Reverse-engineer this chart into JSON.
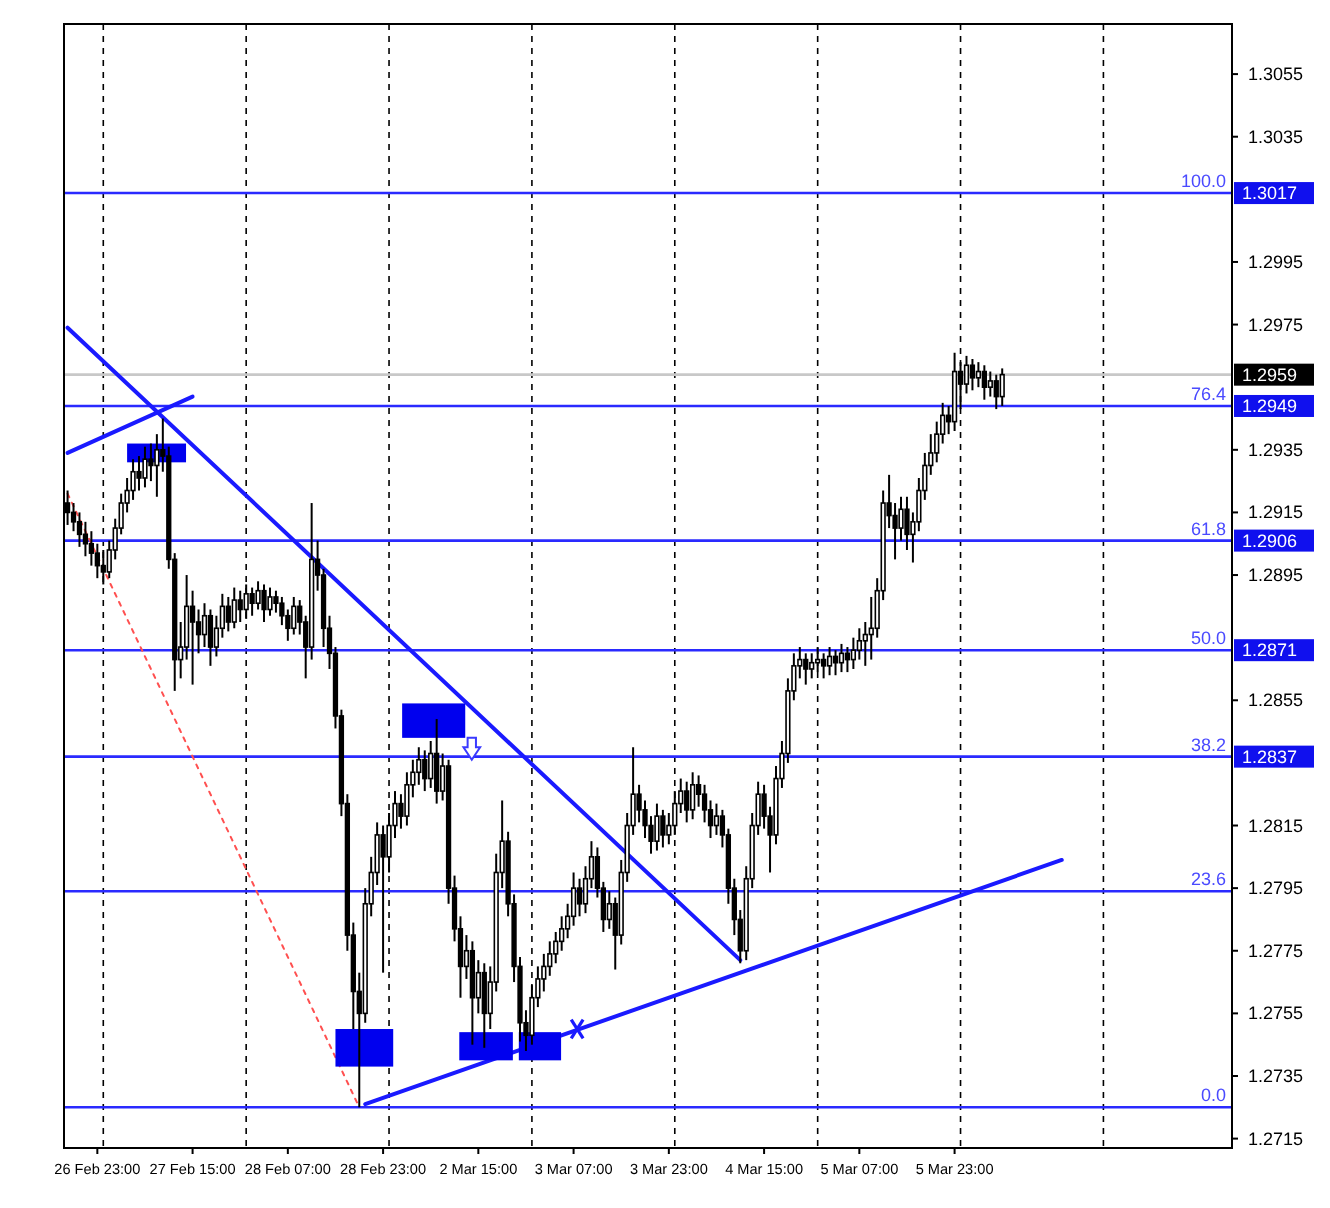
{
  "chart_data": {
    "type": "candlestick",
    "categories": [
      null,
      null,
      null,
      null,
      null,
      "26 Feb 23:00",
      null,
      null,
      null,
      null,
      null,
      null,
      null,
      null,
      null,
      null,
      null,
      null,
      null,
      null,
      null,
      "27 Feb 15:00",
      null,
      null,
      null,
      null,
      null,
      null,
      null,
      null,
      null,
      null,
      null,
      null,
      null,
      null,
      null,
      "28 Feb 07:00",
      null,
      null,
      null,
      null,
      null,
      null,
      null,
      null,
      null,
      null,
      null,
      null,
      null,
      null,
      null,
      "28 Feb 23:00",
      null,
      null,
      null,
      null,
      null,
      null,
      null,
      null,
      null,
      null,
      null,
      null,
      null,
      null,
      null,
      "2 Mar 15:00",
      null,
      null,
      null,
      null,
      null,
      null,
      null,
      null,
      null,
      null,
      null,
      null,
      null,
      null,
      null,
      "3 Mar 07:00",
      null,
      null,
      null,
      null,
      null,
      null,
      null,
      null,
      null,
      null,
      null,
      null,
      null,
      null,
      null,
      "3 Mar 23:00",
      null,
      null,
      null,
      null,
      null,
      null,
      null,
      null,
      null,
      null,
      null,
      null,
      null,
      null,
      null,
      "4 Mar 15:00",
      null,
      null,
      null,
      null,
      null,
      null,
      null,
      null,
      null,
      null,
      null,
      null,
      null,
      null,
      null,
      "5 Mar 07:00",
      null,
      null,
      null,
      null,
      null,
      null,
      null,
      null,
      null,
      null,
      null,
      null,
      null,
      null,
      null,
      "5 Mar 23:00",
      null,
      null,
      null,
      null,
      null,
      null,
      null,
      null,
      null,
      null,
      null,
      null,
      null,
      null,
      null,
      null,
      null,
      null,
      null,
      null,
      null,
      null,
      null,
      null,
      null,
      null,
      null,
      null,
      null,
      null,
      null,
      null,
      null,
      null,
      null,
      null,
      null,
      null,
      null,
      null,
      null,
      null,
      null,
      null,
      null,
      null
    ],
    "ohlc": [
      [
        1.2918,
        1.2922,
        1.2911,
        1.2915
      ],
      [
        1.2915,
        1.2918,
        1.2909,
        1.2912
      ],
      [
        1.2912,
        1.2915,
        1.2904,
        1.2908
      ],
      [
        1.2908,
        1.2912,
        1.2901,
        1.2905
      ],
      [
        1.2905,
        1.2909,
        1.2898,
        1.2902
      ],
      [
        1.2902,
        1.2905,
        1.2894,
        1.2898
      ],
      [
        1.2898,
        1.2903,
        1.2892,
        1.2896
      ],
      [
        1.2896,
        1.2906,
        1.2894,
        1.2903
      ],
      [
        1.2903,
        1.2913,
        1.29,
        1.291
      ],
      [
        1.291,
        1.2921,
        1.2908,
        1.2918
      ],
      [
        1.2918,
        1.2926,
        1.2915,
        1.2922
      ],
      [
        1.2922,
        1.2932,
        1.2919,
        1.2928
      ],
      [
        1.2928,
        1.2933,
        1.2922,
        1.2926
      ],
      [
        1.2926,
        1.2936,
        1.2923,
        1.2932
      ],
      [
        1.2932,
        1.2937,
        1.2925,
        1.293
      ],
      [
        1.293,
        1.294,
        1.292,
        1.2935
      ],
      [
        1.2935,
        1.2945,
        1.2928,
        1.2933
      ],
      [
        1.2933,
        1.2936,
        1.2897,
        1.29
      ],
      [
        1.29,
        1.2902,
        1.2858,
        1.2868
      ],
      [
        1.2868,
        1.288,
        1.2862,
        1.2872
      ],
      [
        1.2872,
        1.2895,
        1.2868,
        1.2885
      ],
      [
        1.2885,
        1.289,
        1.286,
        1.288
      ],
      [
        1.288,
        1.2884,
        1.287,
        1.2876
      ],
      [
        1.2876,
        1.2886,
        1.2872,
        1.2882
      ],
      [
        1.2882,
        1.2884,
        1.2866,
        1.2872
      ],
      [
        1.2872,
        1.2882,
        1.2869,
        1.2878
      ],
      [
        1.2878,
        1.2889,
        1.2875,
        1.2885
      ],
      [
        1.2885,
        1.2888,
        1.2877,
        1.288
      ],
      [
        1.288,
        1.2891,
        1.2878,
        1.2887
      ],
      [
        1.2887,
        1.289,
        1.288,
        1.2884
      ],
      [
        1.2884,
        1.2892,
        1.2881,
        1.2889
      ],
      [
        1.2889,
        1.2891,
        1.2882,
        1.2886
      ],
      [
        1.2886,
        1.2893,
        1.2884,
        1.289
      ],
      [
        1.289,
        1.2892,
        1.288,
        1.2884
      ],
      [
        1.2884,
        1.2891,
        1.2882,
        1.2888
      ],
      [
        1.2888,
        1.289,
        1.2883,
        1.2886
      ],
      [
        1.2886,
        1.2888,
        1.2879,
        1.2882
      ],
      [
        1.2882,
        1.2884,
        1.2874,
        1.2878
      ],
      [
        1.2878,
        1.2888,
        1.2876,
        1.2885
      ],
      [
        1.2885,
        1.2887,
        1.2876,
        1.288
      ],
      [
        1.288,
        1.2882,
        1.2862,
        1.2872
      ],
      [
        1.2872,
        1.2918,
        1.2868,
        1.29
      ],
      [
        1.29,
        1.2906,
        1.289,
        1.2895
      ],
      [
        1.2895,
        1.2897,
        1.2872,
        1.2878
      ],
      [
        1.2878,
        1.2882,
        1.2865,
        1.287
      ],
      [
        1.287,
        1.2872,
        1.2846,
        1.285
      ],
      [
        1.285,
        1.2852,
        1.2818,
        1.2822
      ],
      [
        1.2822,
        1.2825,
        1.2775,
        1.278
      ],
      [
        1.278,
        1.2784,
        1.275,
        1.2762
      ],
      [
        1.2762,
        1.2768,
        1.2725,
        1.2755
      ],
      [
        1.2755,
        1.2795,
        1.2752,
        1.279
      ],
      [
        1.279,
        1.2805,
        1.2786,
        1.28
      ],
      [
        1.28,
        1.2816,
        1.2796,
        1.2812
      ],
      [
        1.2812,
        1.2815,
        1.2768,
        1.2805
      ],
      [
        1.2805,
        1.2819,
        1.28,
        1.2815
      ],
      [
        1.2815,
        1.2826,
        1.2811,
        1.2822
      ],
      [
        1.2822,
        1.2825,
        1.2814,
        1.2818
      ],
      [
        1.2818,
        1.2832,
        1.2815,
        1.2828
      ],
      [
        1.2828,
        1.2836,
        1.2824,
        1.2832
      ],
      [
        1.2832,
        1.284,
        1.2828,
        1.2836
      ],
      [
        1.2836,
        1.2839,
        1.2826,
        1.283
      ],
      [
        1.283,
        1.2842,
        1.2827,
        1.2838
      ],
      [
        1.2838,
        1.2849,
        1.2822,
        1.2826
      ],
      [
        1.2826,
        1.2838,
        1.2823,
        1.2834
      ],
      [
        1.2834,
        1.2836,
        1.279,
        1.2795
      ],
      [
        1.2795,
        1.2799,
        1.2778,
        1.2782
      ],
      [
        1.2782,
        1.2786,
        1.276,
        1.277
      ],
      [
        1.277,
        1.278,
        1.2766,
        1.2775
      ],
      [
        1.2775,
        1.2778,
        1.2745,
        1.276
      ],
      [
        1.276,
        1.2772,
        1.2755,
        1.2768
      ],
      [
        1.2768,
        1.2771,
        1.2744,
        1.2755
      ],
      [
        1.2755,
        1.277,
        1.275,
        1.2765
      ],
      [
        1.2765,
        1.2806,
        1.2762,
        1.28
      ],
      [
        1.28,
        1.2823,
        1.2795,
        1.281
      ],
      [
        1.281,
        1.2813,
        1.2786,
        1.279
      ],
      [
        1.279,
        1.2793,
        1.2765,
        1.277
      ],
      [
        1.277,
        1.2773,
        1.2746,
        1.2752
      ],
      [
        1.2752,
        1.2756,
        1.2743,
        1.2748
      ],
      [
        1.2748,
        1.2764,
        1.2745,
        1.276
      ],
      [
        1.276,
        1.277,
        1.2757,
        1.2766
      ],
      [
        1.2766,
        1.2774,
        1.2762,
        1.277
      ],
      [
        1.277,
        1.2778,
        1.2767,
        1.2774
      ],
      [
        1.2774,
        1.2781,
        1.2771,
        1.2778
      ],
      [
        1.2778,
        1.2786,
        1.2775,
        1.2782
      ],
      [
        1.2782,
        1.279,
        1.2779,
        1.2786
      ],
      [
        1.2786,
        1.28,
        1.2783,
        1.2795
      ],
      [
        1.2795,
        1.2798,
        1.2786,
        1.279
      ],
      [
        1.279,
        1.2802,
        1.2787,
        1.2798
      ],
      [
        1.2798,
        1.281,
        1.2795,
        1.2805
      ],
      [
        1.2805,
        1.2808,
        1.2792,
        1.2795
      ],
      [
        1.2795,
        1.2797,
        1.2781,
        1.2785
      ],
      [
        1.2785,
        1.2794,
        1.2782,
        1.279
      ],
      [
        1.279,
        1.2792,
        1.2769,
        1.278
      ],
      [
        1.278,
        1.2804,
        1.2777,
        1.28
      ],
      [
        1.28,
        1.2819,
        1.2797,
        1.2815
      ],
      [
        1.2815,
        1.284,
        1.2812,
        1.2825
      ],
      [
        1.2825,
        1.2828,
        1.2816,
        1.282
      ],
      [
        1.282,
        1.2823,
        1.2811,
        1.2815
      ],
      [
        1.2815,
        1.2818,
        1.2806,
        1.281
      ],
      [
        1.281,
        1.2822,
        1.2807,
        1.2818
      ],
      [
        1.2818,
        1.282,
        1.2808,
        1.2812
      ],
      [
        1.2812,
        1.2819,
        1.2809,
        1.2815
      ],
      [
        1.2815,
        1.2826,
        1.2812,
        1.2822
      ],
      [
        1.2822,
        1.283,
        1.2819,
        1.2826
      ],
      [
        1.2826,
        1.2829,
        1.2816,
        1.282
      ],
      [
        1.282,
        1.2832,
        1.2817,
        1.2828
      ],
      [
        1.2828,
        1.2831,
        1.2821,
        1.2825
      ],
      [
        1.2825,
        1.2828,
        1.2816,
        1.282
      ],
      [
        1.282,
        1.2823,
        1.2811,
        1.2815
      ],
      [
        1.2815,
        1.2822,
        1.2812,
        1.2818
      ],
      [
        1.2818,
        1.282,
        1.2808,
        1.2812
      ],
      [
        1.2812,
        1.2814,
        1.279,
        1.2795
      ],
      [
        1.2795,
        1.2798,
        1.278,
        1.2785
      ],
      [
        1.2785,
        1.2788,
        1.2771,
        1.2775
      ],
      [
        1.2775,
        1.2802,
        1.2772,
        1.2798
      ],
      [
        1.2798,
        1.2819,
        1.2795,
        1.2815
      ],
      [
        1.2815,
        1.2829,
        1.2812,
        1.2825
      ],
      [
        1.2825,
        1.2828,
        1.2814,
        1.2818
      ],
      [
        1.2818,
        1.2821,
        1.28,
        1.2812
      ],
      [
        1.2812,
        1.2834,
        1.2809,
        1.283
      ],
      [
        1.283,
        1.2842,
        1.2827,
        1.2838
      ],
      [
        1.2838,
        1.2862,
        1.2835,
        1.2858
      ],
      [
        1.2858,
        1.287,
        1.2855,
        1.2866
      ],
      [
        1.2866,
        1.2872,
        1.2862,
        1.2868
      ],
      [
        1.2868,
        1.287,
        1.286,
        1.2865
      ],
      [
        1.2865,
        1.287,
        1.2862,
        1.2867
      ],
      [
        1.2867,
        1.2872,
        1.2864,
        1.2868
      ],
      [
        1.2868,
        1.287,
        1.2862,
        1.2866
      ],
      [
        1.2866,
        1.2872,
        1.2863,
        1.2869
      ],
      [
        1.2869,
        1.2871,
        1.2863,
        1.2867
      ],
      [
        1.2867,
        1.2873,
        1.2864,
        1.287
      ],
      [
        1.287,
        1.2872,
        1.2864,
        1.2868
      ],
      [
        1.2868,
        1.2875,
        1.2865,
        1.2871
      ],
      [
        1.2871,
        1.2878,
        1.2868,
        1.2874
      ],
      [
        1.2874,
        1.288,
        1.2866,
        1.2876
      ],
      [
        1.2876,
        1.2888,
        1.2868,
        1.2878
      ],
      [
        1.2878,
        1.2894,
        1.2875,
        1.289
      ],
      [
        1.289,
        1.2922,
        1.2887,
        1.2918
      ],
      [
        1.2918,
        1.2927,
        1.291,
        1.2914
      ],
      [
        1.2914,
        1.2918,
        1.29,
        1.291
      ],
      [
        1.291,
        1.292,
        1.2906,
        1.2916
      ],
      [
        1.2916,
        1.292,
        1.2903,
        1.2908
      ],
      [
        1.2908,
        1.2915,
        1.2899,
        1.2912
      ],
      [
        1.2912,
        1.2926,
        1.2909,
        1.2922
      ],
      [
        1.2922,
        1.2934,
        1.2919,
        1.293
      ],
      [
        1.293,
        1.294,
        1.2927,
        1.2934
      ],
      [
        1.2934,
        1.2944,
        1.2931,
        1.294
      ],
      [
        1.294,
        1.295,
        1.2937,
        1.2946
      ],
      [
        1.2946,
        1.2949,
        1.294,
        1.2944
      ],
      [
        1.2944,
        1.2966,
        1.2941,
        1.296
      ],
      [
        1.296,
        1.2963,
        1.2948,
        1.2956
      ],
      [
        1.2956,
        1.2965,
        1.2953,
        1.2962
      ],
      [
        1.2962,
        1.2964,
        1.2954,
        1.2958
      ],
      [
        1.2958,
        1.2963,
        1.2955,
        1.296
      ],
      [
        1.296,
        1.2962,
        1.2951,
        1.2955
      ],
      [
        1.2955,
        1.296,
        1.2952,
        1.2957
      ],
      [
        1.2957,
        1.2959,
        1.2948,
        1.2952
      ],
      [
        1.2952,
        1.2961,
        1.2949,
        1.2959
      ],
      null,
      null,
      null,
      null,
      null,
      null,
      null,
      null,
      null,
      null,
      null,
      null,
      null,
      null,
      null,
      null,
      null,
      null,
      null,
      null,
      null,
      null,
      null,
      null,
      null,
      null,
      null,
      null,
      null,
      null,
      null,
      null,
      null,
      null,
      null,
      null,
      null,
      null
    ],
    "series": [
      {
        "type": "line",
        "color": "#1a1aff",
        "line_style": "solid",
        "values": [
          1.2974,
          null,
          null,
          null,
          null,
          null,
          null,
          null,
          null,
          null,
          null,
          null,
          null,
          null,
          null,
          null,
          null,
          null,
          null,
          null,
          null,
          null,
          null,
          null,
          null,
          null,
          null,
          null,
          null,
          null,
          null,
          null,
          null,
          null,
          null,
          null,
          null,
          null,
          null,
          null,
          null,
          null,
          null,
          null,
          null,
          null,
          null,
          null,
          null,
          null,
          null,
          null,
          null,
          null,
          null,
          null,
          null,
          null,
          null,
          null,
          null,
          null,
          null,
          null,
          null,
          null,
          null,
          null,
          null,
          null,
          null,
          null,
          null,
          null,
          null,
          null,
          null,
          null,
          null,
          null,
          null,
          null,
          null,
          null,
          null,
          null,
          null,
          null,
          null,
          null,
          null,
          null,
          null,
          null,
          null,
          null,
          null,
          null,
          null,
          null,
          null,
          null,
          null,
          null,
          null,
          null,
          null,
          null,
          null,
          null,
          null,
          null,
          null,
          1.2772,
          null,
          null,
          null,
          null,
          null,
          null,
          null,
          null,
          null,
          null,
          null,
          null,
          null,
          null,
          null,
          null,
          null,
          null,
          null,
          null,
          null,
          null,
          null,
          null,
          null,
          null,
          null,
          null,
          null,
          null,
          null,
          null,
          null,
          null,
          null,
          null,
          null,
          null,
          null,
          null,
          null,
          null,
          null,
          null,
          null,
          null,
          null,
          null,
          null,
          null,
          null,
          null,
          null,
          null,
          null,
          null,
          null,
          null,
          null,
          null,
          null,
          null,
          null,
          null,
          null,
          null,
          null,
          null,
          null,
          null,
          null,
          null,
          null,
          null,
          null,
          null,
          null,
          null,
          null,
          null,
          null,
          null
        ]
      },
      {
        "type": "line",
        "color": "#1a1aff",
        "line_style": "solid",
        "values": [
          1.2934,
          null,
          null,
          null,
          null,
          null,
          null,
          null,
          null,
          null,
          null,
          null,
          null,
          null,
          null,
          null,
          null,
          null,
          null,
          null,
          null,
          1.2952,
          null,
          null,
          null,
          null,
          null,
          null,
          null,
          null,
          null,
          null,
          null,
          null,
          null,
          null,
          null,
          null,
          null,
          null,
          null,
          null,
          null,
          null,
          null,
          null,
          null,
          null,
          null,
          null,
          null,
          null,
          null,
          null,
          null,
          null,
          null,
          null,
          null,
          null,
          null,
          null,
          null,
          null,
          null,
          null,
          null,
          null,
          null,
          null,
          null,
          null,
          null,
          null,
          null,
          null,
          null,
          null,
          null,
          null,
          null,
          null,
          null,
          null,
          null,
          null,
          null,
          null,
          null,
          null,
          null,
          null,
          null,
          null,
          null,
          null,
          null,
          null,
          null,
          null,
          null,
          null,
          null,
          null,
          null,
          null,
          null,
          null,
          null,
          null,
          null,
          null,
          null,
          null,
          null,
          null,
          null,
          null,
          null,
          null,
          null,
          null,
          null,
          null,
          null,
          null,
          null,
          null,
          null,
          null,
          null,
          null,
          null,
          null,
          null,
          null,
          null,
          null,
          null,
          null,
          null,
          null,
          null,
          null,
          null,
          null,
          null,
          null,
          null,
          null,
          null,
          null,
          null,
          null,
          null,
          null,
          null,
          null,
          null,
          null,
          null,
          null,
          null,
          null,
          null,
          null,
          null,
          null,
          null,
          null,
          null,
          null,
          null,
          null,
          null,
          null,
          null,
          null,
          null,
          null,
          null,
          null,
          null,
          null,
          null,
          null,
          null,
          null,
          null,
          null,
          null,
          null,
          null,
          null,
          null,
          null
        ]
      },
      {
        "type": "line",
        "color": "#1a1aff",
        "line_style": "solid",
        "values": [
          null,
          null,
          null,
          null,
          null,
          null,
          null,
          null,
          null,
          null,
          null,
          null,
          null,
          null,
          null,
          null,
          null,
          null,
          null,
          null,
          null,
          null,
          null,
          null,
          null,
          null,
          null,
          null,
          null,
          null,
          null,
          null,
          null,
          null,
          null,
          null,
          null,
          null,
          null,
          null,
          null,
          null,
          null,
          null,
          null,
          null,
          null,
          null,
          null,
          null,
          1.2726,
          null,
          null,
          null,
          null,
          null,
          null,
          null,
          null,
          null,
          null,
          null,
          null,
          null,
          null,
          null,
          null,
          null,
          null,
          null,
          null,
          null,
          null,
          null,
          null,
          null,
          null,
          null,
          null,
          null,
          null,
          null,
          null,
          null,
          null,
          null,
          null,
          null,
          null,
          null,
          null,
          null,
          null,
          null,
          null,
          null,
          null,
          null,
          null,
          null,
          null,
          null,
          null,
          null,
          null,
          null,
          null,
          null,
          null,
          null,
          null,
          null,
          null,
          null,
          null,
          null,
          null,
          null,
          null,
          null,
          null,
          null,
          null,
          null,
          null,
          null,
          null,
          null,
          null,
          null,
          null,
          null,
          null,
          null,
          null,
          null,
          null,
          null,
          null,
          null,
          null,
          null,
          null,
          null,
          null,
          null,
          null,
          null,
          null,
          null,
          null,
          null,
          null,
          null,
          null,
          null,
          null,
          null,
          null,
          null,
          null,
          null,
          null,
          null,
          null,
          null,
          null,
          1.2804,
          null,
          null,
          null,
          null,
          null,
          null,
          null,
          null,
          null,
          null,
          null,
          null,
          null,
          null,
          null,
          null,
          null,
          null,
          null,
          null,
          null,
          null,
          null,
          null,
          null,
          null,
          null,
          null
        ]
      },
      {
        "type": "line",
        "color": "#ff5050",
        "line_style": "dotted",
        "values": [
          1.2921,
          null,
          null,
          null,
          null,
          null,
          null,
          null,
          null,
          null,
          null,
          null,
          null,
          null,
          null,
          null,
          null,
          null,
          null,
          null,
          null,
          null,
          null,
          null,
          null,
          null,
          null,
          null,
          null,
          null,
          null,
          null,
          null,
          null,
          null,
          null,
          null,
          null,
          null,
          null,
          null,
          null,
          null,
          null,
          null,
          null,
          null,
          null,
          null,
          1.2725,
          null,
          null,
          null,
          null,
          null,
          null,
          null,
          null,
          null,
          null,
          null,
          null,
          null,
          null,
          null,
          null,
          null,
          null,
          null,
          null,
          null,
          null,
          null,
          null,
          null,
          null,
          null,
          null,
          null,
          null,
          null,
          null,
          null,
          null,
          null,
          null,
          null,
          null,
          null,
          null,
          null,
          null,
          null,
          null,
          null,
          null,
          null,
          null,
          null,
          null,
          null,
          null,
          null,
          null,
          null,
          null,
          null,
          null,
          null,
          null,
          null,
          null,
          null,
          null,
          null,
          null,
          null,
          null,
          null,
          null,
          null,
          null,
          null,
          null,
          null,
          null,
          null,
          null,
          null,
          null,
          null,
          null,
          null,
          null,
          null,
          null,
          null,
          null,
          null,
          null,
          null,
          null,
          null,
          null,
          null,
          null,
          null,
          null,
          null,
          null,
          null,
          null,
          null,
          null,
          null,
          null,
          null,
          null,
          null,
          null,
          null,
          null,
          null,
          null,
          null,
          null,
          null,
          null,
          null,
          null,
          null,
          null,
          null,
          null,
          null,
          null,
          null,
          null,
          null,
          null,
          null,
          null,
          null,
          null,
          null,
          null,
          null,
          null,
          null,
          null,
          null,
          null,
          null,
          null,
          null,
          null
        ]
      }
    ],
    "ylim": [
      1.2712,
      1.3071
    ],
    "yticks": [
      1.3055,
      1.3035,
      1.2995,
      1.2975,
      1.2935,
      1.2915,
      1.2895,
      1.2855,
      1.2815,
      1.2795,
      1.2775,
      1.2755,
      1.2735,
      1.2715
    ],
    "grid": "x",
    "ref_lines": [
      {
        "axis": "y",
        "value": 1.3017,
        "label": "1.3017",
        "color": "#2a2aff"
      },
      {
        "axis": "y",
        "value": 1.2959,
        "label": "1.2959",
        "color": "#c8c8c8"
      },
      {
        "axis": "y",
        "value": 1.2949,
        "label": "1.2949",
        "color": "#2a2aff"
      },
      {
        "axis": "y",
        "value": 1.2906,
        "label": "1.2906",
        "color": "#2a2aff"
      },
      {
        "axis": "y",
        "value": 1.2871,
        "label": "1.2871",
        "color": "#2a2aff"
      },
      {
        "axis": "y",
        "value": 1.2837,
        "label": "1.2837",
        "color": "#2a2aff"
      },
      {
        "axis": "y",
        "value": 1.2794,
        "color": "#2a2aff"
      },
      {
        "axis": "y",
        "value": 1.2725,
        "color": "#2a2aff"
      }
    ],
    "annotations": [
      {
        "text": "100.0",
        "y": 1.3017
      },
      {
        "text": "76.4",
        "y": 1.2949
      },
      {
        "text": "61.8",
        "y": 1.2906
      },
      {
        "text": "50.0",
        "y": 1.2871
      },
      {
        "text": "38.2",
        "y": 1.2837
      },
      {
        "text": "23.6",
        "y": 1.2794
      },
      {
        "text": "0.0",
        "y": 1.2725
      }
    ]
  }
}
